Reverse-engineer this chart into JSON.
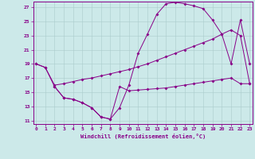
{
  "xlabel": "Windchill (Refroidissement éolien,°C)",
  "bg_color": "#cce9e9",
  "line_color": "#880088",
  "grid_color": "#aacccc",
  "xticks": [
    0,
    1,
    2,
    3,
    4,
    5,
    6,
    7,
    8,
    9,
    10,
    11,
    12,
    13,
    14,
    15,
    16,
    17,
    18,
    19,
    20,
    21,
    22,
    23
  ],
  "yticks": [
    11,
    13,
    15,
    17,
    19,
    21,
    23,
    25,
    27
  ],
  "xlim": [
    -0.3,
    23.3
  ],
  "ylim": [
    10.5,
    27.8
  ],
  "curve1_x": [
    0,
    1,
    2,
    3,
    4,
    5,
    6,
    7,
    8,
    9,
    10,
    11,
    12,
    13,
    14,
    15,
    16,
    17,
    18,
    19,
    20,
    21,
    22,
    23
  ],
  "curve1_y": [
    19.0,
    18.5,
    16.0,
    16.2,
    16.5,
    16.8,
    17.0,
    17.3,
    17.6,
    17.9,
    18.2,
    18.6,
    19.0,
    19.5,
    20.0,
    20.5,
    21.0,
    21.5,
    22.0,
    22.5,
    23.2,
    23.8,
    23.0,
    16.2
  ],
  "curve2_x": [
    0,
    1,
    2,
    3,
    4,
    5,
    6,
    7,
    8,
    9,
    10,
    11,
    12,
    13,
    14,
    15,
    16,
    17,
    18,
    19,
    20,
    21,
    22,
    23
  ],
  "curve2_y": [
    19.0,
    18.5,
    15.8,
    14.2,
    14.0,
    13.5,
    12.8,
    11.5,
    11.2,
    12.8,
    16.0,
    20.5,
    23.2,
    26.0,
    27.5,
    27.7,
    27.5,
    27.2,
    26.8,
    25.2,
    23.2,
    19.0,
    25.2,
    19.0
  ],
  "curve3_x": [
    2,
    3,
    4,
    5,
    6,
    7,
    8,
    9,
    10,
    11,
    12,
    13,
    14,
    15,
    16,
    17,
    18,
    19,
    20,
    21,
    22,
    23
  ],
  "curve3_y": [
    15.8,
    14.2,
    14.0,
    13.5,
    12.8,
    11.5,
    11.2,
    15.8,
    15.2,
    15.3,
    15.4,
    15.5,
    15.6,
    15.8,
    16.0,
    16.2,
    16.4,
    16.6,
    16.8,
    17.0,
    16.2,
    16.2
  ]
}
